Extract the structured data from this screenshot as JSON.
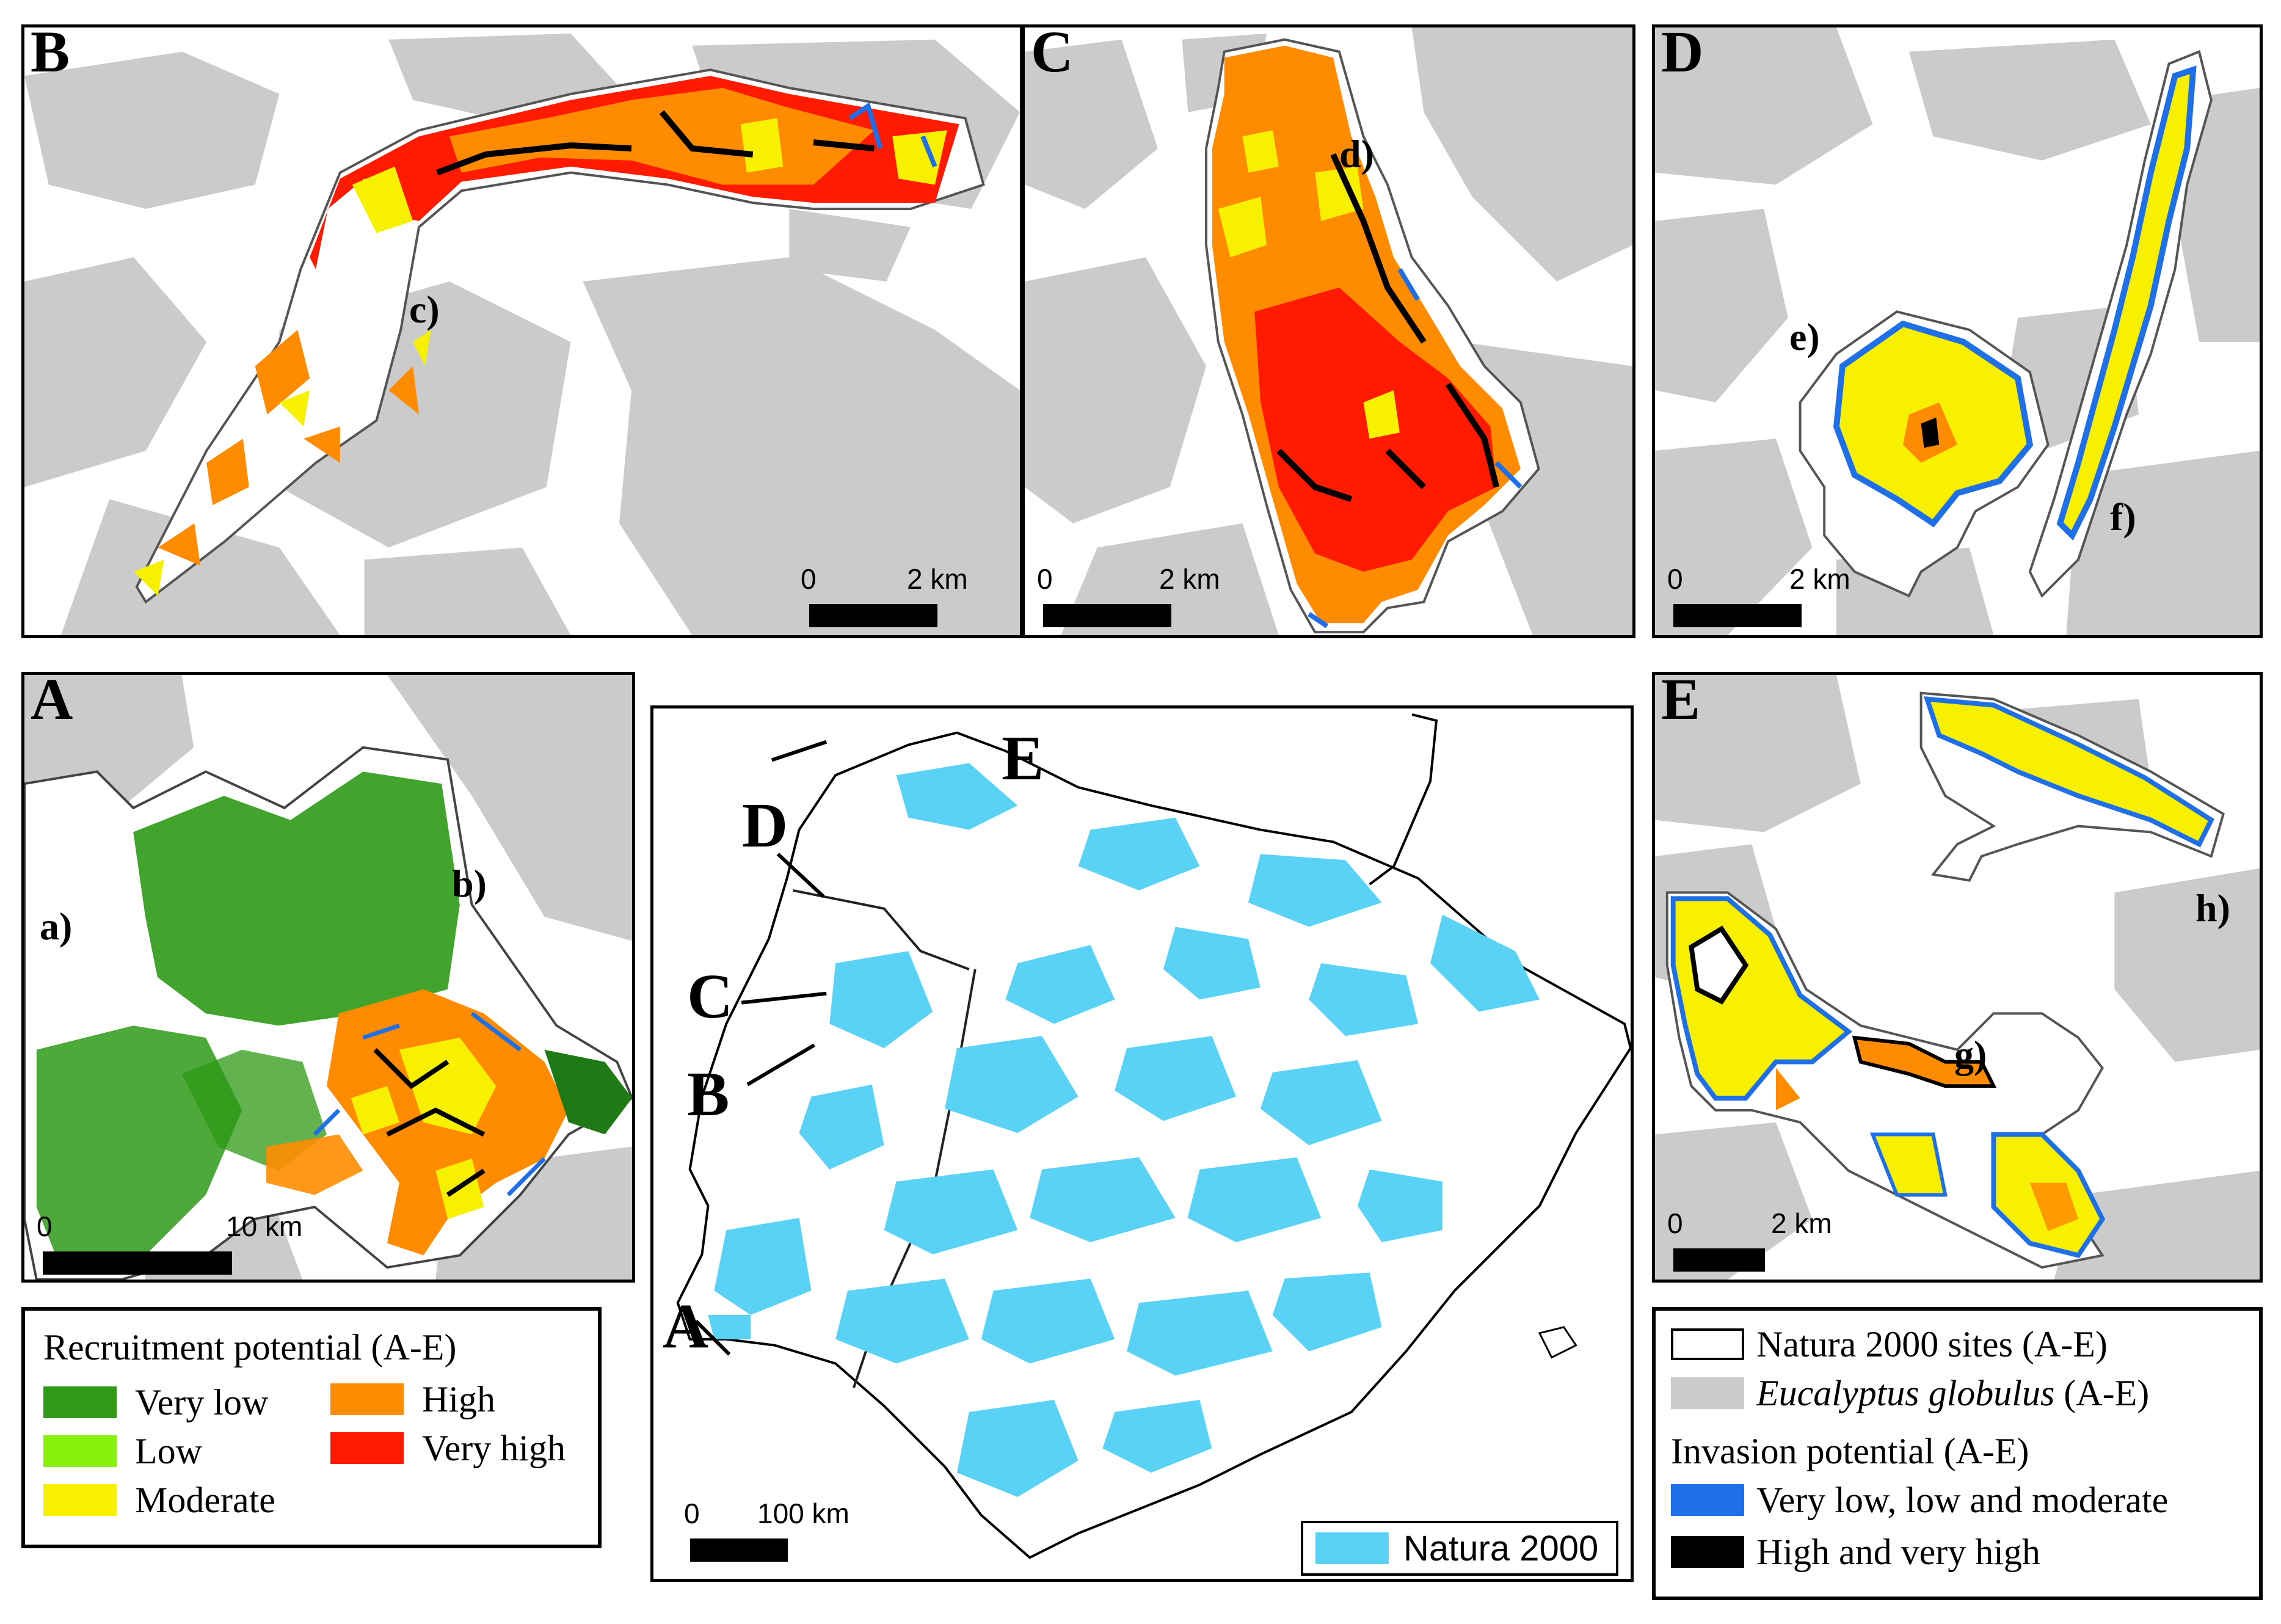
{
  "panels": {
    "B": {
      "label": "B",
      "sublabels": [
        "c)"
      ],
      "scale": {
        "zero": "0",
        "end": "2 km"
      }
    },
    "C": {
      "label": "C",
      "sublabels": [
        "d)"
      ],
      "scale": {
        "zero": "0",
        "end": "2 km"
      }
    },
    "D": {
      "label": "D",
      "sublabels": [
        "e)",
        "f)"
      ],
      "scale": {
        "zero": "0",
        "end": "2 km"
      }
    },
    "A": {
      "label": "A",
      "sublabels": [
        "a)",
        "b)"
      ],
      "scale": {
        "zero": "0",
        "end": "10 km"
      }
    },
    "E": {
      "label": "E",
      "sublabels": [
        "h)",
        "g)"
      ],
      "scale": {
        "zero": "0",
        "end": "2 km"
      }
    },
    "main": {
      "site_labels": [
        "A",
        "B",
        "C",
        "D",
        "E"
      ],
      "scale": {
        "zero": "0",
        "end": "100 km"
      },
      "legend_label": "Natura 2000"
    }
  },
  "legend_recruitment": {
    "title": "Recruitment potential (A-E)",
    "items": [
      {
        "label": "Very low",
        "color": "#2e9a16"
      },
      {
        "label": "Low",
        "color": "#88f00a"
      },
      {
        "label": "Moderate",
        "color": "#f7f000"
      },
      {
        "label": "High",
        "color": "#ff8c00"
      },
      {
        "label": "Very high",
        "color": "#ff1a00"
      }
    ]
  },
  "legend_invasion": {
    "natura_label": "Natura 2000 sites (A-E)",
    "eucalyptus_label": "Eucalyptus globulus",
    "eucalyptus_suffix": " (A-E)",
    "invasion_title": "Invasion potential (A-E)",
    "items": [
      {
        "label": "Very low, low and moderate",
        "color": "#1e6fe8"
      },
      {
        "label": "High and very high",
        "color": "#000000"
      }
    ]
  },
  "colors": {
    "eucalyptus": "#cbcbcb",
    "natura": "#5ad2f5",
    "very_low": "#2e9a16",
    "moderate": "#f7f000",
    "high": "#ff8c00",
    "very_high": "#ff1a00",
    "invasion_low": "#1e6fe8",
    "invasion_high": "#000000"
  }
}
